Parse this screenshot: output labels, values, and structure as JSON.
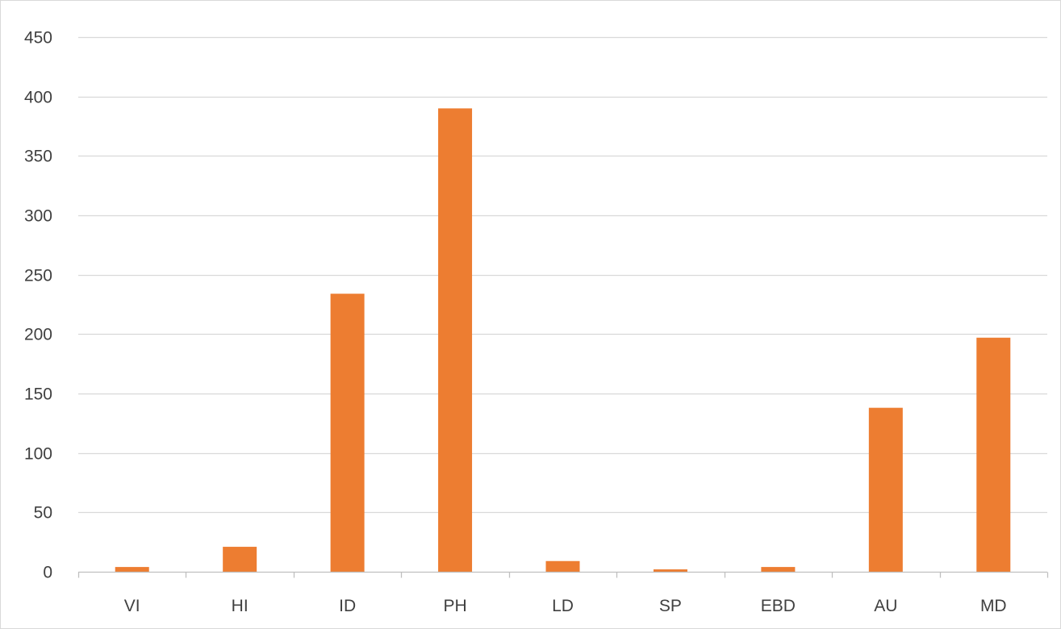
{
  "chart_data": {
    "type": "bar",
    "categories": [
      "VI",
      "HI",
      "ID",
      "PH",
      "LD",
      "SP",
      "EBD",
      "AU",
      "MD"
    ],
    "series": [
      {
        "values": [
          4,
          21,
          234,
          390,
          9,
          2,
          4,
          138,
          197
        ],
        "color": "#ed7d31"
      }
    ],
    "ylim": [
      0,
      450
    ],
    "yticks": [
      0,
      50,
      100,
      150,
      200,
      250,
      300,
      350,
      400,
      450
    ],
    "grid": true,
    "title": "",
    "xlabel": "",
    "ylabel": ""
  },
  "colors": {
    "bar": "#ed7d31",
    "gridline": "#d9d9d9",
    "axis": "#bfbfbf",
    "text": "#404040"
  }
}
